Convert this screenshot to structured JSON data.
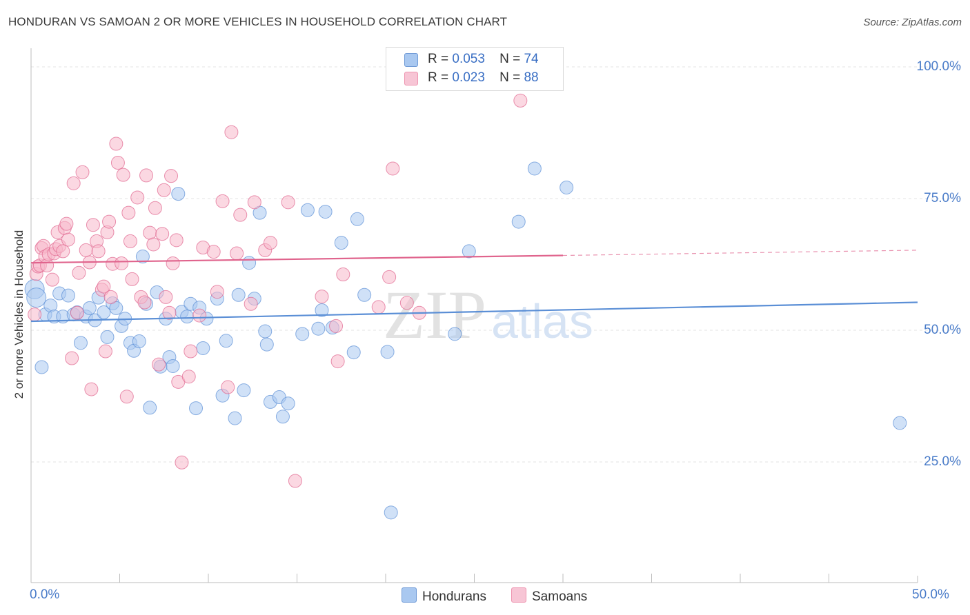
{
  "header": {
    "title": "HONDURAN VS SAMOAN 2 OR MORE VEHICLES IN HOUSEHOLD CORRELATION CHART",
    "source": "Source: ZipAtlas.com"
  },
  "watermark": {
    "zip": "ZIP",
    "atlas": "atlas"
  },
  "legend_top": [
    {
      "r_label": "R =",
      "r_value": "0.053",
      "n_label": "N =",
      "n_value": "74",
      "color": "#a9c8f0"
    },
    {
      "r_label": "R =",
      "r_value": "0.023",
      "n_label": "N =",
      "n_value": "88",
      "color": "#f7b8cb"
    }
  ],
  "chart_data": {
    "type": "scatter",
    "title": "HONDURAN VS SAMOAN 2 OR MORE VEHICLES IN HOUSEHOLD CORRELATION CHART",
    "xlabel": "",
    "ylabel": "2 or more Vehicles in Household",
    "xlim": [
      0,
      50
    ],
    "ylim": [
      0,
      105
    ],
    "x_tick_labels": [
      "0.0%",
      "50.0%"
    ],
    "y_tick_labels": [
      "100.0%",
      "75.0%",
      "50.0%",
      "25.0%"
    ],
    "y_ticks": [
      100,
      75,
      50,
      25
    ],
    "grid": true,
    "legend_position": "bottom",
    "series": [
      {
        "name": "Hondurans",
        "color": "#5b8fd6",
        "fill": "#a9c8f0",
        "R": 0.053,
        "N": 74,
        "trend": {
          "x": [
            0,
            50
          ],
          "y": [
            51.7,
            55.3
          ]
        },
        "points": [
          [
            0.2,
            57.8
          ],
          [
            0.3,
            56.2
          ],
          [
            0.6,
            43.0
          ],
          [
            0.8,
            53.0
          ],
          [
            1.1,
            54.7
          ],
          [
            1.3,
            52.6
          ],
          [
            1.6,
            57.0
          ],
          [
            1.8,
            52.6
          ],
          [
            2.1,
            56.6
          ],
          [
            2.4,
            53.0
          ],
          [
            2.6,
            53.4
          ],
          [
            2.8,
            47.6
          ],
          [
            3.1,
            52.6
          ],
          [
            3.3,
            54.2
          ],
          [
            3.6,
            51.9
          ],
          [
            3.8,
            56.2
          ],
          [
            4.1,
            53.4
          ],
          [
            4.3,
            48.7
          ],
          [
            4.6,
            55.1
          ],
          [
            4.8,
            54.2
          ],
          [
            5.1,
            50.8
          ],
          [
            5.3,
            52.2
          ],
          [
            5.6,
            47.6
          ],
          [
            5.8,
            46.1
          ],
          [
            6.1,
            47.9
          ],
          [
            6.3,
            64.0
          ],
          [
            6.5,
            55.0
          ],
          [
            6.7,
            35.3
          ],
          [
            7.1,
            57.2
          ],
          [
            7.3,
            43.1
          ],
          [
            7.6,
            52.2
          ],
          [
            7.8,
            44.9
          ],
          [
            8.0,
            43.2
          ],
          [
            8.3,
            75.9
          ],
          [
            8.5,
            53.5
          ],
          [
            8.8,
            52.6
          ],
          [
            9.0,
            55.0
          ],
          [
            9.3,
            35.2
          ],
          [
            9.5,
            54.3
          ],
          [
            9.7,
            46.6
          ],
          [
            9.9,
            52.2
          ],
          [
            10.5,
            56.0
          ],
          [
            10.8,
            37.6
          ],
          [
            11.0,
            48.0
          ],
          [
            11.5,
            33.3
          ],
          [
            11.7,
            56.7
          ],
          [
            12.0,
            38.6
          ],
          [
            12.3,
            62.8
          ],
          [
            12.6,
            56.0
          ],
          [
            12.9,
            72.3
          ],
          [
            13.2,
            49.8
          ],
          [
            13.3,
            47.3
          ],
          [
            13.5,
            36.4
          ],
          [
            14.0,
            37.3
          ],
          [
            14.2,
            33.6
          ],
          [
            14.5,
            36.1
          ],
          [
            15.3,
            49.3
          ],
          [
            15.6,
            72.8
          ],
          [
            16.2,
            50.3
          ],
          [
            16.4,
            53.8
          ],
          [
            16.6,
            72.5
          ],
          [
            17.0,
            50.5
          ],
          [
            17.5,
            66.6
          ],
          [
            18.2,
            45.8
          ],
          [
            18.4,
            71.1
          ],
          [
            18.8,
            56.7
          ],
          [
            20.1,
            45.9
          ],
          [
            20.3,
            15.4
          ],
          [
            23.9,
            49.3
          ],
          [
            24.7,
            65.0
          ],
          [
            27.5,
            70.6
          ],
          [
            28.4,
            80.7
          ],
          [
            30.2,
            77.1
          ],
          [
            49.0,
            32.4
          ]
        ]
      },
      {
        "name": "Samoans",
        "color": "#e0648d",
        "fill": "#f7b8cb",
        "R": 0.023,
        "N": 88,
        "trend": {
          "x": [
            0,
            30
          ],
          "y": [
            62.8,
            64.2
          ]
        },
        "trend_dashed": {
          "x": [
            30,
            50
          ],
          "y": [
            64.2,
            65.2
          ]
        },
        "points": [
          [
            0.2,
            53.0
          ],
          [
            0.3,
            60.7
          ],
          [
            0.4,
            62.1
          ],
          [
            0.5,
            62.3
          ],
          [
            0.6,
            65.6
          ],
          [
            0.7,
            66.0
          ],
          [
            0.8,
            64.0
          ],
          [
            0.9,
            62.3
          ],
          [
            1.0,
            64.4
          ],
          [
            1.2,
            59.6
          ],
          [
            1.3,
            64.6
          ],
          [
            1.4,
            65.4
          ],
          [
            1.5,
            68.6
          ],
          [
            1.6,
            66.0
          ],
          [
            1.8,
            65.0
          ],
          [
            1.9,
            69.4
          ],
          [
            2.0,
            70.2
          ],
          [
            2.1,
            67.2
          ],
          [
            2.3,
            44.7
          ],
          [
            2.4,
            77.9
          ],
          [
            2.6,
            53.3
          ],
          [
            2.7,
            60.9
          ],
          [
            2.9,
            80.0
          ],
          [
            3.1,
            65.2
          ],
          [
            3.3,
            62.9
          ],
          [
            3.4,
            38.8
          ],
          [
            3.5,
            70.0
          ],
          [
            3.7,
            66.9
          ],
          [
            3.8,
            65.0
          ],
          [
            4.0,
            57.7
          ],
          [
            4.1,
            58.3
          ],
          [
            4.2,
            46.0
          ],
          [
            4.3,
            68.6
          ],
          [
            4.4,
            70.6
          ],
          [
            4.5,
            56.3
          ],
          [
            4.6,
            62.6
          ],
          [
            4.8,
            85.4
          ],
          [
            4.9,
            81.8
          ],
          [
            5.1,
            62.7
          ],
          [
            5.2,
            79.5
          ],
          [
            5.4,
            37.4
          ],
          [
            5.5,
            72.3
          ],
          [
            5.6,
            66.9
          ],
          [
            5.7,
            59.7
          ],
          [
            6.0,
            75.2
          ],
          [
            6.2,
            56.3
          ],
          [
            6.4,
            55.3
          ],
          [
            6.5,
            79.4
          ],
          [
            6.7,
            68.5
          ],
          [
            6.9,
            66.3
          ],
          [
            7.0,
            73.2
          ],
          [
            7.2,
            43.5
          ],
          [
            7.4,
            68.3
          ],
          [
            7.5,
            76.6
          ],
          [
            7.6,
            56.3
          ],
          [
            7.8,
            53.3
          ],
          [
            7.9,
            79.3
          ],
          [
            8.0,
            62.7
          ],
          [
            8.2,
            67.1
          ],
          [
            8.3,
            40.2
          ],
          [
            8.5,
            24.9
          ],
          [
            8.9,
            41.2
          ],
          [
            9.0,
            46.0
          ],
          [
            9.5,
            52.8
          ],
          [
            9.7,
            65.7
          ],
          [
            10.3,
            64.9
          ],
          [
            10.5,
            57.3
          ],
          [
            10.8,
            74.5
          ],
          [
            11.1,
            39.2
          ],
          [
            11.3,
            87.6
          ],
          [
            11.6,
            64.6
          ],
          [
            11.8,
            71.9
          ],
          [
            12.6,
            74.3
          ],
          [
            13.2,
            65.2
          ],
          [
            13.5,
            66.6
          ],
          [
            14.5,
            74.3
          ],
          [
            14.9,
            21.4
          ],
          [
            17.2,
            50.8
          ],
          [
            17.3,
            44.1
          ],
          [
            17.6,
            60.6
          ],
          [
            19.6,
            54.4
          ],
          [
            20.2,
            60.1
          ],
          [
            20.4,
            80.7
          ],
          [
            21.2,
            55.2
          ],
          [
            21.9,
            53.3
          ],
          [
            27.6,
            93.6
          ],
          [
            12.4,
            55.0
          ],
          [
            16.4,
            56.4
          ]
        ]
      }
    ]
  }
}
